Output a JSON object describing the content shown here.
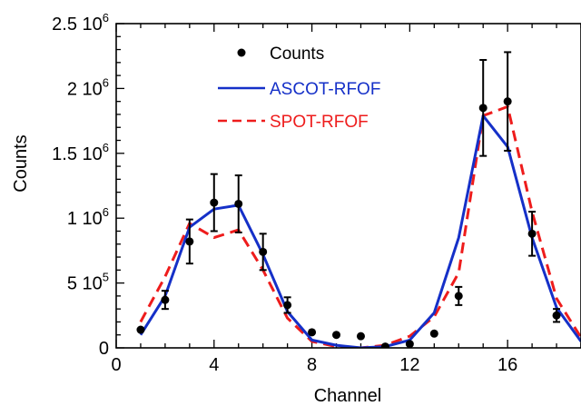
{
  "chart_data": {
    "type": "line",
    "xlabel": "Channel",
    "ylabel": "Counts",
    "xlim": [
      0,
      19
    ],
    "ylim": [
      0,
      2500000
    ],
    "x_ticks": [
      0,
      4,
      8,
      12,
      16
    ],
    "x_tick_labels": [
      "0",
      "4",
      "8",
      "12",
      "16"
    ],
    "y_ticks": [
      {
        "value": 0,
        "mantissa": "0",
        "exponent": ""
      },
      {
        "value": 500000,
        "mantissa": "5 10",
        "exponent": "5"
      },
      {
        "value": 1000000,
        "mantissa": "1 10",
        "exponent": "6"
      },
      {
        "value": 1500000,
        "mantissa": "1.5 10",
        "exponent": "6"
      },
      {
        "value": 2000000,
        "mantissa": "2 10",
        "exponent": "6"
      },
      {
        "value": 2500000,
        "mantissa": "2.5 10",
        "exponent": "6"
      }
    ],
    "legend": {
      "placement": "top-left"
    },
    "series": [
      {
        "name": "Counts",
        "kind": "points-with-errorbars",
        "color": "#000000",
        "x": [
          1,
          2,
          3,
          4,
          5,
          6,
          7,
          8,
          9,
          10,
          11,
          12,
          13,
          14,
          15,
          16,
          17,
          18
        ],
        "y": [
          140000,
          370000,
          820000,
          1120000,
          1110000,
          740000,
          330000,
          120000,
          100000,
          90000,
          10000,
          30000,
          110000,
          400000,
          1850000,
          1900000,
          880000,
          250000
        ],
        "err": [
          10000,
          70000,
          170000,
          220000,
          220000,
          140000,
          60000,
          15000,
          10000,
          8000,
          5000,
          5000,
          12000,
          70000,
          370000,
          380000,
          170000,
          50000
        ]
      },
      {
        "name": "ASCOT-RFOF",
        "kind": "line",
        "color": "#1530c8",
        "dash": "solid",
        "x": [
          1,
          2,
          3,
          4,
          5,
          6,
          7,
          8,
          9,
          10,
          11,
          12,
          13,
          14,
          15,
          16,
          17,
          18,
          19
        ],
        "y": [
          100000,
          400000,
          930000,
          1070000,
          1100000,
          720000,
          280000,
          60000,
          20000,
          0,
          10000,
          60000,
          270000,
          850000,
          1790000,
          1550000,
          850000,
          310000,
          50000
        ]
      },
      {
        "name": "SPOT-RFOF",
        "kind": "line",
        "color": "#ee1c1c",
        "dash": "dashed",
        "x": [
          1,
          2,
          3,
          4,
          5,
          6,
          7,
          8,
          9,
          10,
          11,
          12,
          13,
          14,
          15,
          16,
          17,
          18,
          19
        ],
        "y": [
          200000,
          550000,
          960000,
          850000,
          910000,
          600000,
          230000,
          50000,
          10000,
          0,
          20000,
          90000,
          240000,
          580000,
          1790000,
          1860000,
          1050000,
          380000,
          80000
        ]
      }
    ]
  }
}
